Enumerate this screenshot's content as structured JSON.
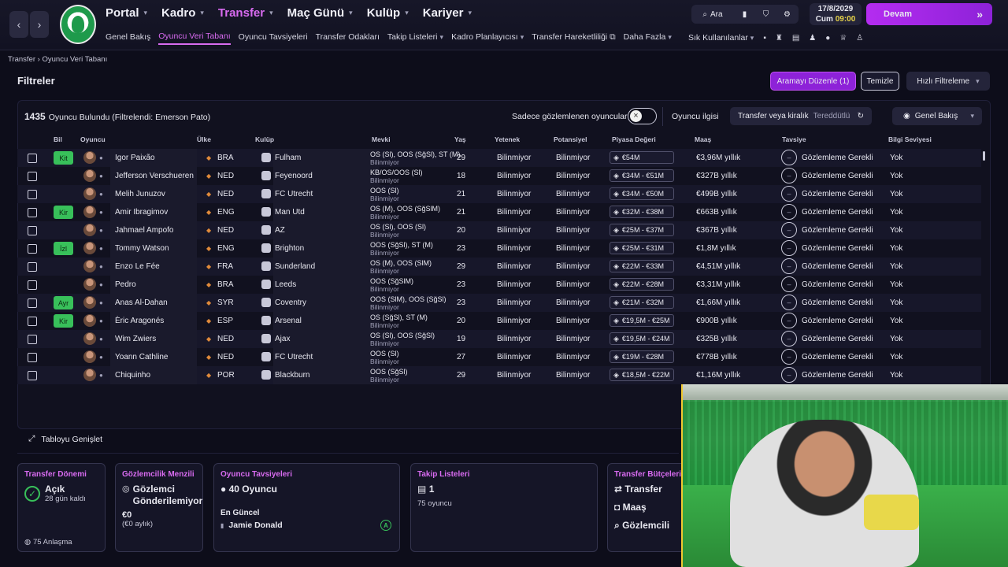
{
  "nav": {
    "main": [
      {
        "label": "Portal",
        "active": false
      },
      {
        "label": "Kadro",
        "active": false
      },
      {
        "label": "Transfer",
        "active": true
      },
      {
        "label": "Maç Günü",
        "active": false
      },
      {
        "label": "Kulüp",
        "active": false
      },
      {
        "label": "Kariyer",
        "active": false
      }
    ],
    "sub": [
      {
        "label": "Genel Bakış",
        "active": false
      },
      {
        "label": "Oyuncu Veri Tabanı",
        "active": true
      },
      {
        "label": "Oyuncu Tavsiyeleri",
        "active": false
      },
      {
        "label": "Transfer Odakları",
        "active": false
      },
      {
        "label": "Takip Listeleri",
        "active": false,
        "chevron": true
      },
      {
        "label": "Kadro Planlayıcısı",
        "active": false,
        "chevron": true
      },
      {
        "label": "Transfer Hareketliliği",
        "active": false,
        "ext": true
      },
      {
        "label": "Daha Fazla",
        "active": false,
        "chevron": true
      }
    ],
    "search_label": "Ara",
    "date": "17/8/2029",
    "day_time_day": "Cum",
    "day_time_time": "09:00",
    "continue_label": "Devam",
    "shortcuts_label": "Sık Kullanılanlar"
  },
  "breadcrumb": {
    "root": "Transfer",
    "current": "Oyuncu Veri Tabanı"
  },
  "filters": {
    "title": "Filtreler",
    "edit_label": "Aramayı Düzenle (1)",
    "clear_label": "Temizle",
    "quick_label": "Hızlı Filtreleme"
  },
  "results": {
    "count": "1435",
    "text": "Oyuncu Bulundu (Filtrelendi: Emerson Pato)",
    "scouted_only_label": "Sadece gözlemlenen oyuncular",
    "interest_label": "Oyuncu ilgisi",
    "transfer_label": "Transfer veya kiralık",
    "transfer_value": "Tereddütlü",
    "view_label": "Genel Bakış"
  },
  "columns": {
    "bil": "Bil",
    "oyuncu": "Oyuncu",
    "ulke": "Ülke",
    "kulup": "Kulüp",
    "mevki": "Mevki",
    "yas": "Yaş",
    "yetenek": "Yetenek",
    "potansiyel": "Potansiyel",
    "piyasa": "Piyasa Değeri",
    "maas": "Maaş",
    "tavsiye": "Tavsiye",
    "bilgi": "Bilgi Seviyesi"
  },
  "players": [
    {
      "bil": "Kit",
      "name": "Igor Paixão",
      "country": "BRA",
      "club": "Fulham",
      "pos": "OS (Sl), OOS (SğSl), ST (M)",
      "age": "29",
      "ability": "Bilinmiyor",
      "potential": "Bilinmiyor",
      "value": "€54M",
      "wage": "€3,96M yıllık",
      "advice": "Gözlemleme Gerekli",
      "knowledge": "Yok"
    },
    {
      "bil": "",
      "name": "Jefferson Verschueren",
      "country": "NED",
      "club": "Feyenoord",
      "pos": "KB/OS/OOS (Sl)",
      "age": "18",
      "ability": "Bilinmiyor",
      "potential": "Bilinmiyor",
      "value": "€34M - €51M",
      "wage": "€327B yıllık",
      "advice": "Gözlemleme Gerekli",
      "knowledge": "Yok"
    },
    {
      "bil": "",
      "name": "Melih Junuzov",
      "country": "NED",
      "club": "FC Utrecht",
      "pos": "OOS (Sl)",
      "age": "21",
      "ability": "Bilinmiyor",
      "potential": "Bilinmiyor",
      "value": "€34M - €50M",
      "wage": "€499B yıllık",
      "advice": "Gözlemleme Gerekli",
      "knowledge": "Yok"
    },
    {
      "bil": "Kir",
      "name": "Amir Ibragimov",
      "country": "ENG",
      "club": "Man Utd",
      "pos": "OS (M), OOS (SğSlM)",
      "age": "21",
      "ability": "Bilinmiyor",
      "potential": "Bilinmiyor",
      "value": "€32M - €38M",
      "wage": "€663B yıllık",
      "advice": "Gözlemleme Gerekli",
      "knowledge": "Yok"
    },
    {
      "bil": "",
      "name": "Jahmael Ampofo",
      "country": "NED",
      "club": "AZ",
      "pos": "OS (Sl), OOS (Sl)",
      "age": "20",
      "ability": "Bilinmiyor",
      "potential": "Bilinmiyor",
      "value": "€25M - €37M",
      "wage": "€367B yıllık",
      "advice": "Gözlemleme Gerekli",
      "knowledge": "Yok"
    },
    {
      "bil": "İzl",
      "name": "Tommy Watson",
      "country": "ENG",
      "club": "Brighton",
      "pos": "OOS (SğSl), ST (M)",
      "age": "23",
      "ability": "Bilinmiyor",
      "potential": "Bilinmiyor",
      "value": "€25M - €31M",
      "wage": "€1,8M yıllık",
      "advice": "Gözlemleme Gerekli",
      "knowledge": "Yok"
    },
    {
      "bil": "",
      "name": "Enzo Le Fée",
      "country": "FRA",
      "club": "Sunderland",
      "pos": "OS (M), OOS (SlM)",
      "age": "29",
      "ability": "Bilinmiyor",
      "potential": "Bilinmiyor",
      "value": "€22M - €33M",
      "wage": "€4,51M yıllık",
      "advice": "Gözlemleme Gerekli",
      "knowledge": "Yok"
    },
    {
      "bil": "",
      "name": "Pedro",
      "country": "BRA",
      "club": "Leeds",
      "pos": "OOS (SğSlM)",
      "age": "23",
      "ability": "Bilinmiyor",
      "potential": "Bilinmiyor",
      "value": "€22M - €28M",
      "wage": "€3,31M yıllık",
      "advice": "Gözlemleme Gerekli",
      "knowledge": "Yok"
    },
    {
      "bil": "Ayr",
      "name": "Anas Al-Dahan",
      "country": "SYR",
      "club": "Coventry",
      "pos": "OOS (SlM), OOS (SğSl)",
      "age": "23",
      "ability": "Bilinmiyor",
      "potential": "Bilinmiyor",
      "value": "€21M - €32M",
      "wage": "€1,66M yıllık",
      "advice": "Gözlemleme Gerekli",
      "knowledge": "Yok"
    },
    {
      "bil": "Kir",
      "name": "Èric Aragonés",
      "country": "ESP",
      "club": "Arsenal",
      "pos": "OS (SğSl), ST (M)",
      "age": "20",
      "ability": "Bilinmiyor",
      "potential": "Bilinmiyor",
      "value": "€19,5M - €25M",
      "wage": "€900B yıllık",
      "advice": "Gözlemleme Gerekli",
      "knowledge": "Yok"
    },
    {
      "bil": "",
      "name": "Wim Zwiers",
      "country": "NED",
      "club": "Ajax",
      "pos": "OS (Sl), OOS (SğSl)",
      "age": "19",
      "ability": "Bilinmiyor",
      "potential": "Bilinmiyor",
      "value": "€19,5M - €24M",
      "wage": "€325B yıllık",
      "advice": "Gözlemleme Gerekli",
      "knowledge": "Yok"
    },
    {
      "bil": "",
      "name": "Yoann Cathline",
      "country": "NED",
      "club": "FC Utrecht",
      "pos": "OOS (Sl)",
      "age": "27",
      "ability": "Bilinmiyor",
      "potential": "Bilinmiyor",
      "value": "€19M - €28M",
      "wage": "€778B yıllık",
      "advice": "Gözlemleme Gerekli",
      "knowledge": "Yok"
    },
    {
      "bil": "",
      "name": "Chiquinho",
      "country": "POR",
      "club": "Blackburn",
      "pos": "OOS (SğSl)",
      "age": "29",
      "ability": "Bilinmiyor",
      "potential": "Bilinmiyor",
      "value": "€18,5M - €22M",
      "wage": "€1,16M yıllık",
      "advice": "Gözlemleme Gerekli",
      "knowledge": "Yok"
    }
  ],
  "position_sub": "Bilinmiyor",
  "expand_label": "Tabloyu Genişlet",
  "cards": {
    "window": {
      "title": "Transfer Dönemi",
      "status": "Açık",
      "days": "28 gün kaldı",
      "deals": "75 Anlaşma"
    },
    "scouting": {
      "title": "Gözlemcilik Menzili",
      "status": "Gözlemci Gönderilemiyor",
      "amount": "€0",
      "monthly": "(€0 aylık)"
    },
    "recommend": {
      "title": "Oyuncu Tavsiyeleri",
      "count": "40 Oyuncu",
      "latest_label": "En Güncel",
      "latest_name": "Jamie Donald"
    },
    "shortlists": {
      "title": "Takip Listeleri",
      "count": "1",
      "players": "75 oyuncu"
    },
    "budget": {
      "title": "Transfer Bütçeleri",
      "transfer": "Transfer",
      "wage": "Maaş",
      "scouting": "Gözlemcili"
    }
  }
}
